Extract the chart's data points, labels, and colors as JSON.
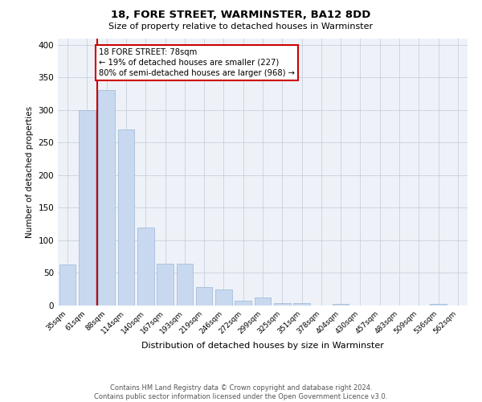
{
  "title1": "18, FORE STREET, WARMINSTER, BA12 8DD",
  "title2": "Size of property relative to detached houses in Warminster",
  "xlabel": "Distribution of detached houses by size in Warminster",
  "ylabel": "Number of detached properties",
  "categories": [
    "35sqm",
    "61sqm",
    "88sqm",
    "114sqm",
    "140sqm",
    "167sqm",
    "193sqm",
    "219sqm",
    "246sqm",
    "272sqm",
    "299sqm",
    "325sqm",
    "351sqm",
    "378sqm",
    "404sqm",
    "430sqm",
    "457sqm",
    "483sqm",
    "509sqm",
    "536sqm",
    "562sqm"
  ],
  "values": [
    63,
    300,
    330,
    270,
    119,
    64,
    64,
    28,
    25,
    7,
    12,
    4,
    4,
    0,
    3,
    0,
    0,
    0,
    0,
    3,
    0
  ],
  "bar_color": "#c8d9ef",
  "bar_edge_color": "#9ab5d5",
  "vline_x": 1.5,
  "vline_color": "#cc0000",
  "annotation_text": "18 FORE STREET: 78sqm\n← 19% of detached houses are smaller (227)\n80% of semi-detached houses are larger (968) →",
  "annotation_box_color": "#ffffff",
  "annotation_box_edge": "#cc0000",
  "ylim": [
    0,
    410
  ],
  "yticks": [
    0,
    50,
    100,
    150,
    200,
    250,
    300,
    350,
    400
  ],
  "grid_color": "#c8d0dc",
  "background_color": "#eef2f8",
  "footnote": "Contains HM Land Registry data © Crown copyright and database right 2024.\nContains public sector information licensed under the Open Government Licence v3.0."
}
